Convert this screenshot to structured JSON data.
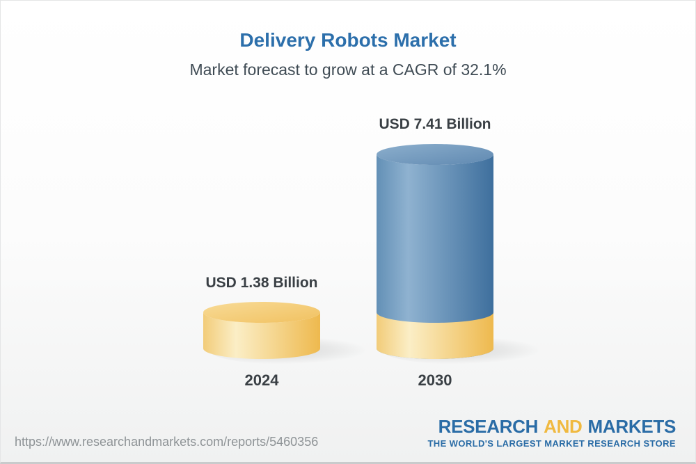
{
  "chart_data": {
    "type": "bar",
    "variant": "3d-cylinder",
    "title": "Delivery Robots Market",
    "subtitle": "Market forecast to grow at a CAGR of 32.1%",
    "cagr_pct": 32.1,
    "unit": "USD Billion",
    "categories": [
      "2024",
      "2030"
    ],
    "values": [
      1.38,
      7.41
    ],
    "ylim": [
      0,
      7.41
    ],
    "grid": false,
    "legend": false,
    "axes_visible": false,
    "bars": [
      {
        "category": "2024",
        "value": 1.38,
        "value_label": "USD 1.38 Billion",
        "theme": "yellow"
      },
      {
        "category": "2030",
        "value": 7.41,
        "value_label": "USD 7.41 Billion",
        "theme": "blue",
        "base_overlay_value": 1.38
      }
    ],
    "colors": {
      "blue_body": [
        {
          "o": 0,
          "c": "#6390b6"
        },
        {
          "o": 27,
          "c": "#8fb2d0"
        },
        {
          "o": 100,
          "c": "#3e6f9d"
        }
      ],
      "blue_top": [
        {
          "o": 0,
          "c": "#8cafcd"
        },
        {
          "o": 100,
          "c": "#6089b1"
        }
      ],
      "yellow_body": [
        {
          "o": 0,
          "c": "#f2cc79"
        },
        {
          "o": 28,
          "c": "#fbeec6"
        },
        {
          "o": 100,
          "c": "#eeb94e"
        }
      ],
      "yellow_top": [
        {
          "o": 0,
          "c": "#f8db97"
        },
        {
          "o": 100,
          "c": "#f1c160"
        }
      ]
    }
  },
  "footer": {
    "source_url": "https://www.researchandmarkets.com/reports/5460356",
    "logo": {
      "line1_part1": "RESEARCH",
      "line1_part2": "AND",
      "line1_part3": "MARKETS",
      "line2": "THE WORLD'S LARGEST MARKET RESEARCH STORE",
      "blue": "#2a6ca6",
      "yellow": "#f0b93f"
    }
  },
  "theme": {
    "title_color": "#2c6fab",
    "subtitle_color": "#3f4b54",
    "label_color": "#393f44",
    "url_color": "#8e9396"
  }
}
